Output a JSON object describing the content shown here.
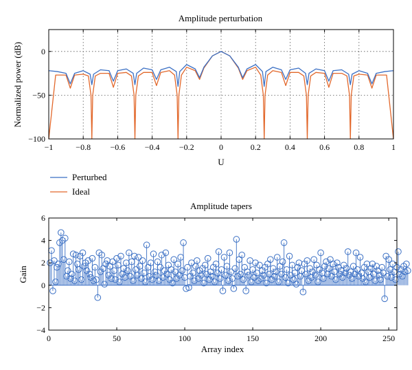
{
  "chart_data": [
    {
      "type": "line",
      "title": "Amplitude perturbation",
      "xlabel": "U",
      "ylabel": "Normalized power (dB)",
      "xlim": [
        -1,
        1
      ],
      "ylim": [
        -100,
        25
      ],
      "xticks": [
        -1,
        -0.8,
        -0.6,
        -0.4,
        -0.2,
        0,
        0.2,
        0.4,
        0.6,
        0.8,
        1
      ],
      "xtick_labels": [
        "−1",
        "−0.8",
        "−0.6",
        "−0.4",
        "−0.2",
        "0",
        "0.2",
        "0.4",
        "0.6",
        "0.8",
        "1"
      ],
      "yticks": [
        -100,
        -50,
        0
      ],
      "ytick_labels": [
        "−100",
        "−50",
        "0"
      ],
      "grid": true,
      "legend_position": "below",
      "series": [
        {
          "name": "Perturbed",
          "color": "#3a6fc4",
          "x": [
            -1,
            -0.95,
            -0.9,
            -0.875,
            -0.85,
            -0.8,
            -0.76,
            -0.75,
            -0.74,
            -0.7,
            -0.65,
            -0.625,
            -0.6,
            -0.55,
            -0.51,
            -0.5,
            -0.49,
            -0.45,
            -0.4,
            -0.375,
            -0.35,
            -0.3,
            -0.26,
            -0.25,
            -0.24,
            -0.2,
            -0.15,
            -0.125,
            -0.1,
            -0.05,
            0,
            0.05,
            0.1,
            0.125,
            0.15,
            0.2,
            0.24,
            0.25,
            0.26,
            0.3,
            0.35,
            0.375,
            0.4,
            0.45,
            0.49,
            0.5,
            0.51,
            0.55,
            0.6,
            0.625,
            0.65,
            0.7,
            0.74,
            0.75,
            0.76,
            0.8,
            0.85,
            0.875,
            0.9,
            0.95,
            1
          ],
          "y": [
            -22,
            -23,
            -25,
            -37,
            -25,
            -22,
            -26,
            -38,
            -26,
            -21,
            -22,
            -34,
            -22,
            -20,
            -25,
            -38,
            -25,
            -19,
            -21,
            -32,
            -21,
            -18,
            -23,
            -40,
            -23,
            -15,
            -20,
            -30,
            -18,
            -5,
            0,
            -5,
            -18,
            -30,
            -20,
            -15,
            -23,
            -40,
            -23,
            -18,
            -21,
            -32,
            -21,
            -19,
            -25,
            -38,
            -25,
            -20,
            -22,
            -34,
            -22,
            -21,
            -26,
            -38,
            -26,
            -22,
            -25,
            -37,
            -25,
            -23,
            -22
          ]
        },
        {
          "name": "Ideal",
          "color": "#e2672a",
          "x": [
            -1,
            -0.96,
            -0.9,
            -0.875,
            -0.85,
            -0.8,
            -0.77,
            -0.755,
            -0.75,
            -0.745,
            -0.73,
            -0.7,
            -0.65,
            -0.625,
            -0.6,
            -0.55,
            -0.52,
            -0.505,
            -0.5,
            -0.495,
            -0.48,
            -0.45,
            -0.4,
            -0.375,
            -0.35,
            -0.3,
            -0.27,
            -0.255,
            -0.25,
            -0.245,
            -0.23,
            -0.2,
            -0.15,
            -0.125,
            -0.1,
            -0.05,
            0,
            0.05,
            0.1,
            0.125,
            0.15,
            0.2,
            0.23,
            0.245,
            0.25,
            0.255,
            0.27,
            0.3,
            0.35,
            0.375,
            0.4,
            0.45,
            0.48,
            0.495,
            0.5,
            0.505,
            0.52,
            0.55,
            0.6,
            0.625,
            0.65,
            0.7,
            0.73,
            0.745,
            0.75,
            0.755,
            0.77,
            0.8,
            0.85,
            0.875,
            0.9,
            0.96,
            1
          ],
          "y": [
            -100,
            -27,
            -27,
            -42,
            -27,
            -26,
            -28,
            -50,
            -100,
            -50,
            -28,
            -25,
            -25,
            -41,
            -25,
            -24,
            -28,
            -50,
            -100,
            -50,
            -28,
            -24,
            -24,
            -39,
            -24,
            -22,
            -27,
            -50,
            -100,
            -50,
            -27,
            -18,
            -22,
            -32,
            -19,
            -5,
            0,
            -5,
            -19,
            -32,
            -22,
            -18,
            -27,
            -50,
            -100,
            -50,
            -27,
            -22,
            -24,
            -39,
            -24,
            -24,
            -28,
            -50,
            -100,
            -50,
            -28,
            -24,
            -25,
            -41,
            -25,
            -25,
            -28,
            -50,
            -100,
            -50,
            -28,
            -26,
            -27,
            -42,
            -27,
            -27,
            -100
          ]
        }
      ]
    },
    {
      "type": "stem",
      "title": "Amplitude tapers",
      "xlabel": "Array index",
      "ylabel": "Gain",
      "xlim": [
        0,
        256
      ],
      "ylim": [
        -4,
        6
      ],
      "xticks": [
        0,
        50,
        100,
        150,
        200,
        250
      ],
      "xtick_labels": [
        "0",
        "50",
        "100",
        "150",
        "200",
        "250"
      ],
      "yticks": [
        -4,
        -2,
        0,
        2,
        4,
        6
      ],
      "ytick_labels": [
        "−4",
        "−2",
        "0",
        "2",
        "4",
        "6"
      ],
      "grid": false,
      "color": "#3a6fc4",
      "values": [
        2.0,
        3.1,
        -0.5,
        2.2,
        0.3,
        1.6,
        1.9,
        3.8,
        4.7,
        4.0,
        2.3,
        4.2,
        0.8,
        1.3,
        2.1,
        0.6,
        1.0,
        2.8,
        0.4,
        2.7,
        1.9,
        1.4,
        2.6,
        0.5,
        2.9,
        1.7,
        2.0,
        1.3,
        2.2,
        1.0,
        0.7,
        2.4,
        0.4,
        1.6,
        0.5,
        -1.1,
        2.9,
        1.2,
        2.7,
        1.5,
        0.1,
        1.9,
        2.2,
        0.9,
        1.7,
        0.6,
        2.1,
        1.3,
        0.5,
        2.4,
        1.8,
        0.3,
        2.6,
        1.0,
        1.5,
        0.7,
        2.0,
        1.3,
        2.9,
        0.8,
        2.1,
        0.4,
        2.6,
        1.4,
        0.9,
        2.5,
        1.7,
        0.6,
        2.2,
        1.1,
        0.3,
        3.6,
        1.6,
        0.8,
        2.0,
        0.5,
        2.8,
        1.2,
        0.9,
        2.1,
        0.4,
        1.6,
        2.7,
        0.7,
        1.3,
        2.9,
        1.0,
        1.8,
        0.5,
        1.4,
        0.2,
        2.3,
        1.2,
        0.6,
        1.9,
        0.9,
        2.5,
        1.3,
        3.8,
        0.7,
        -0.3,
        1.6,
        -0.2,
        0.8,
        2.0,
        1.1,
        0.4,
        1.7,
        2.2,
        0.6,
        1.3,
        0.9,
        1.5,
        0.2,
        1.8,
        1.0,
        2.4,
        0.5,
        1.2,
        0.8,
        1.6,
        0.3,
        1.9,
        1.1,
        3.0,
        0.6,
        1.4,
        -0.5,
        2.5,
        0.9,
        1.7,
        0.4,
        2.9,
        1.2,
        0.6,
        -0.3,
        1.5,
        4.1,
        0.8,
        2.3,
        1.0,
        2.7,
        0.5,
        1.6,
        -0.5,
        1.2,
        0.9,
        2.2,
        0.3,
        1.4,
        0.7,
        2.0,
        1.1,
        0.4,
        1.8,
        0.6,
        1.3,
        0.9,
        1.6,
        0.2,
        1.9,
        1.0,
        2.3,
        0.5,
        1.5,
        0.8,
        1.2,
        2.5,
        0.3,
        1.7,
        1.0,
        2.1,
        3.8,
        0.7,
        1.4,
        0.2,
        2.6,
        0.9,
        1.8,
        0.5,
        1.1,
        0.1,
        1.6,
        2.0,
        0.8,
        1.3,
        -0.6,
        1.9,
        1.0,
        2.2,
        0.4,
        1.5,
        0.7,
        1.2,
        2.3,
        0.9,
        1.8,
        0.3,
        1.4,
        2.9,
        1.1,
        0.6,
        1.7,
        2.1,
        1.0,
        1.5,
        2.3,
        0.8,
        1.9,
        1.2,
        0.5,
        2.0,
        1.6,
        1.0,
        1.3,
        0.7,
        1.8,
        1.1,
        1.5,
        3.0,
        0.9,
        1.2,
        0.6,
        1.7,
        1.0,
        2.9,
        1.4,
        0.8,
        2.5,
        1.1,
        0.6,
        1.6,
        0.3,
        1.9,
        1.2,
        0.7,
        1.5,
        1.9,
        1.0,
        0.4,
        1.7,
        1.3,
        0.9,
        0.5,
        1.6,
        1.1,
        -1.2,
        2.6,
        0.8,
        2.3,
        1.4,
        0.7,
        1.9,
        1.2,
        0.5,
        1.6,
        3.0,
        1.0,
        1.4,
        0.8,
        1.7,
        1.2,
        1.9,
        1.3
      ]
    }
  ]
}
